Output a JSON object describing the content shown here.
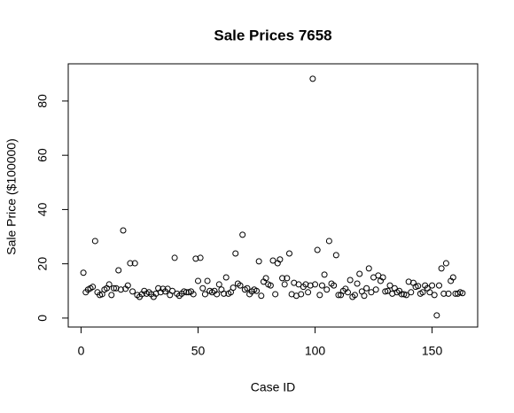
{
  "chart_data": {
    "type": "scatter",
    "title": "Sale Prices 7658",
    "x_label": "Case ID",
    "y_label": "Sale Price ($100000)",
    "x": [
      1,
      2,
      3,
      4,
      5,
      6,
      7,
      8,
      9,
      10,
      11,
      12,
      13,
      14,
      15,
      16,
      17,
      18,
      19,
      20,
      21,
      22,
      23,
      24,
      25,
      26,
      27,
      28,
      29,
      30,
      31,
      32,
      33,
      34,
      35,
      36,
      37,
      38,
      39,
      40,
      41,
      42,
      43,
      44,
      45,
      46,
      47,
      48,
      49,
      50,
      51,
      52,
      53,
      54,
      55,
      56,
      57,
      58,
      59,
      60,
      61,
      62,
      63,
      64,
      65,
      66,
      67,
      68,
      69,
      70,
      71,
      72,
      73,
      74,
      75,
      76,
      77,
      78,
      79,
      80,
      81,
      82,
      83,
      84,
      85,
      86,
      87,
      88,
      89,
      90,
      91,
      92,
      93,
      94,
      95,
      96,
      97,
      98,
      99,
      100,
      101,
      102,
      103,
      104,
      105,
      106,
      107,
      108,
      109,
      110,
      111,
      112,
      113,
      114,
      115,
      116,
      117,
      118,
      119,
      120,
      121,
      122,
      123,
      124,
      125,
      126,
      127,
      128,
      129,
      130,
      131,
      132,
      133,
      134,
      135,
      136,
      137,
      138,
      139,
      140,
      141,
      142,
      143,
      144,
      145,
      146,
      147,
      148,
      149,
      150,
      151,
      152,
      153,
      154,
      155,
      156,
      157,
      158,
      159,
      160,
      161,
      162,
      163
    ],
    "values": [
      16.7,
      9.5,
      10.5,
      11,
      11.5,
      28.4,
      9.5,
      8.5,
      8.8,
      10.5,
      11,
      12.4,
      8.5,
      11,
      11,
      17.6,
      10.5,
      32.3,
      10.8,
      12,
      20.2,
      9.8,
      20.2,
      8.5,
      7.8,
      8.8,
      10,
      9,
      9.5,
      8.8,
      7.8,
      9,
      11,
      9.5,
      10.8,
      9.8,
      10.8,
      8.5,
      10,
      22.2,
      9,
      8.2,
      9,
      9.8,
      9.5,
      9.5,
      9.8,
      8.8,
      21.9,
      13.7,
      22.2,
      11,
      8.8,
      13.7,
      10,
      9.5,
      10,
      8.8,
      12.4,
      10.5,
      9,
      15,
      9,
      9.5,
      11.2,
      23.8,
      12.7,
      12,
      30.7,
      10.5,
      11,
      8.8,
      9.8,
      10.5,
      10,
      20.9,
      8.2,
      13.4,
      14.7,
      12.4,
      12,
      21.2,
      8.8,
      20.2,
      21.6,
      14.7,
      12.4,
      14.7,
      23.8,
      8.8,
      13,
      8.2,
      12.4,
      8.8,
      11.5,
      12.4,
      9.5,
      12,
      88.2,
      12.4,
      25.1,
      8.5,
      12,
      16,
      10.5,
      28.4,
      12.7,
      12,
      23.2,
      8.5,
      8.5,
      10,
      10.8,
      9.5,
      14,
      7.8,
      8.5,
      12.7,
      16.3,
      9.8,
      8.2,
      11,
      18.3,
      9.5,
      15,
      10.5,
      15.7,
      13.7,
      15,
      9.8,
      10,
      12,
      9,
      11,
      9.5,
      10,
      8.8,
      8.8,
      8.5,
      13.4,
      9.5,
      13,
      11.5,
      11.8,
      9,
      9.5,
      12,
      11,
      9.5,
      12,
      8.5,
      1,
      12,
      18.3,
      9,
      20.2,
      9,
      13.7,
      15,
      9,
      9,
      9.5,
      9.2
    ],
    "color": "#000000",
    "xlim": [
      -5.48,
      169.48
    ],
    "xticks": [
      0,
      50,
      100,
      150
    ],
    "ylim": [
      -3.3,
      93.7
    ],
    "yticks": [
      0,
      20,
      40,
      60,
      80
    ]
  }
}
